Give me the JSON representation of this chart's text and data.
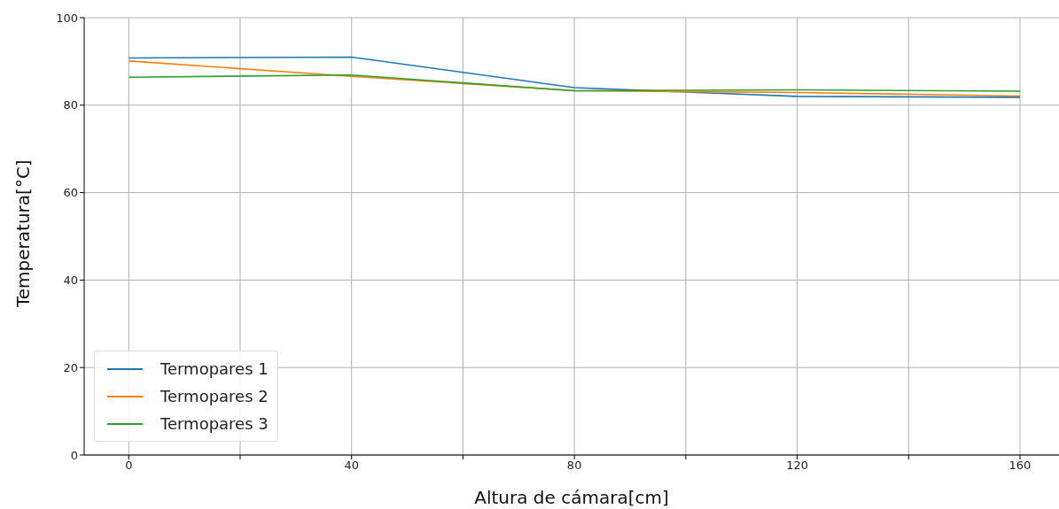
{
  "chart_data": {
    "type": "line",
    "xlabel": "Altura de cámara[cm]",
    "ylabel": "Temperatura[°C]",
    "x": [
      0,
      40,
      80,
      120,
      160
    ],
    "series": [
      {
        "name": "Termopares 1",
        "color": "#1f77b4",
        "values": [
          90.8,
          91.0,
          84.0,
          82.0,
          81.8
        ]
      },
      {
        "name": "Termopares 2",
        "color": "#ff7f0e",
        "values": [
          90.1,
          86.6,
          83.3,
          82.9,
          82.1
        ]
      },
      {
        "name": "Termopares 3",
        "color": "#2ca02c",
        "values": [
          86.4,
          86.9,
          83.3,
          83.5,
          83.2
        ]
      }
    ],
    "xlim": [
      -8,
      167
    ],
    "xticks": [
      0,
      {
        "value": 20,
        "label": null
      },
      40,
      {
        "value": 60,
        "label": null
      },
      80,
      {
        "value": 100,
        "label": null
      },
      120,
      {
        "value": 140,
        "label": null
      },
      160
    ],
    "ylim": [
      0,
      100
    ],
    "yticks": [
      0,
      20,
      40,
      60,
      80,
      100
    ],
    "grid": true,
    "legend": "bottom left",
    "marker": "none",
    "line_style": "solid"
  }
}
